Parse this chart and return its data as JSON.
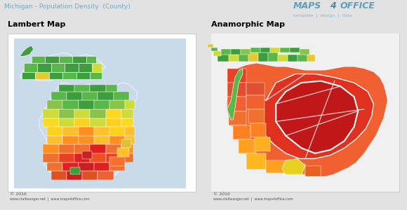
{
  "title_top": "Michigan - Population Density  (County)",
  "title_color": "#5ab0d8",
  "label_left": "Lambert Map",
  "label_right": "Anamorphic Map",
  "label_fontsize": 8.5,
  "bg_color": "#e2e2e2",
  "left_bg": "#c9dae8",
  "right_bg": "#e2e2e2",
  "copyright_left": "© 2016",
  "copyright_right": "© 2016",
  "website": "www.stallwanger.net  |  www.maps4office.com",
  "maps4office_color": "#7ab8d8",
  "panel_border": "#cccccc",
  "white_border": "#ffffff"
}
